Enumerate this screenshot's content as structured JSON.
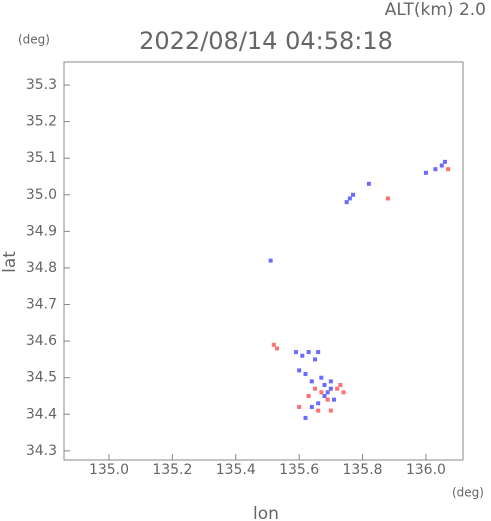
{
  "chart_data": {
    "type": "scatter",
    "title": "2022/08/14 04:58:18",
    "subtitle": "ALT(km) 2.0",
    "y_unit": "(deg)",
    "x_unit": "(deg)",
    "xlabel": "lon",
    "ylabel": "lat",
    "xlim": [
      134.858,
      136.117
    ],
    "ylim": [
      34.275,
      35.363
    ],
    "xticks": [
      {
        "value": 135,
        "label": "135.0"
      },
      135.2,
      135.4,
      135.6,
      135.8,
      {
        "value": 136,
        "label": "136.0"
      }
    ],
    "yticks": [
      34.3,
      34.4,
      34.5,
      34.6,
      34.7,
      34.8,
      34.9,
      {
        "value": 35,
        "label": "35.0"
      },
      35.1,
      35.2,
      35.3
    ],
    "series": [
      {
        "color": "#6a6aff",
        "x": [
          135.51,
          135.75,
          135.76,
          135.77,
          135.82,
          136.0,
          136.03,
          136.06,
          136.05,
          135.59,
          135.61,
          135.63,
          135.65,
          135.66,
          135.6,
          135.62,
          135.64,
          135.67,
          135.68,
          135.7,
          135.69,
          135.71,
          135.66,
          135.64,
          135.62,
          135.68,
          135.7
        ],
        "y": [
          34.82,
          34.98,
          34.99,
          35.0,
          35.03,
          35.06,
          35.07,
          35.09,
          35.08,
          34.57,
          34.56,
          34.57,
          34.55,
          34.57,
          34.52,
          34.51,
          34.49,
          34.5,
          34.48,
          34.49,
          34.46,
          34.44,
          34.43,
          34.42,
          34.39,
          34.45,
          34.47
        ]
      },
      {
        "color": "#ff7070",
        "x": [
          135.88,
          135.52,
          135.53,
          135.63,
          135.65,
          135.67,
          135.72,
          135.74,
          135.6,
          135.69,
          135.7,
          136.07,
          135.66,
          135.73
        ],
        "y": [
          34.99,
          34.59,
          34.58,
          34.45,
          34.47,
          34.46,
          34.47,
          34.46,
          34.42,
          34.44,
          34.41,
          35.07,
          34.41,
          34.48
        ]
      }
    ]
  }
}
